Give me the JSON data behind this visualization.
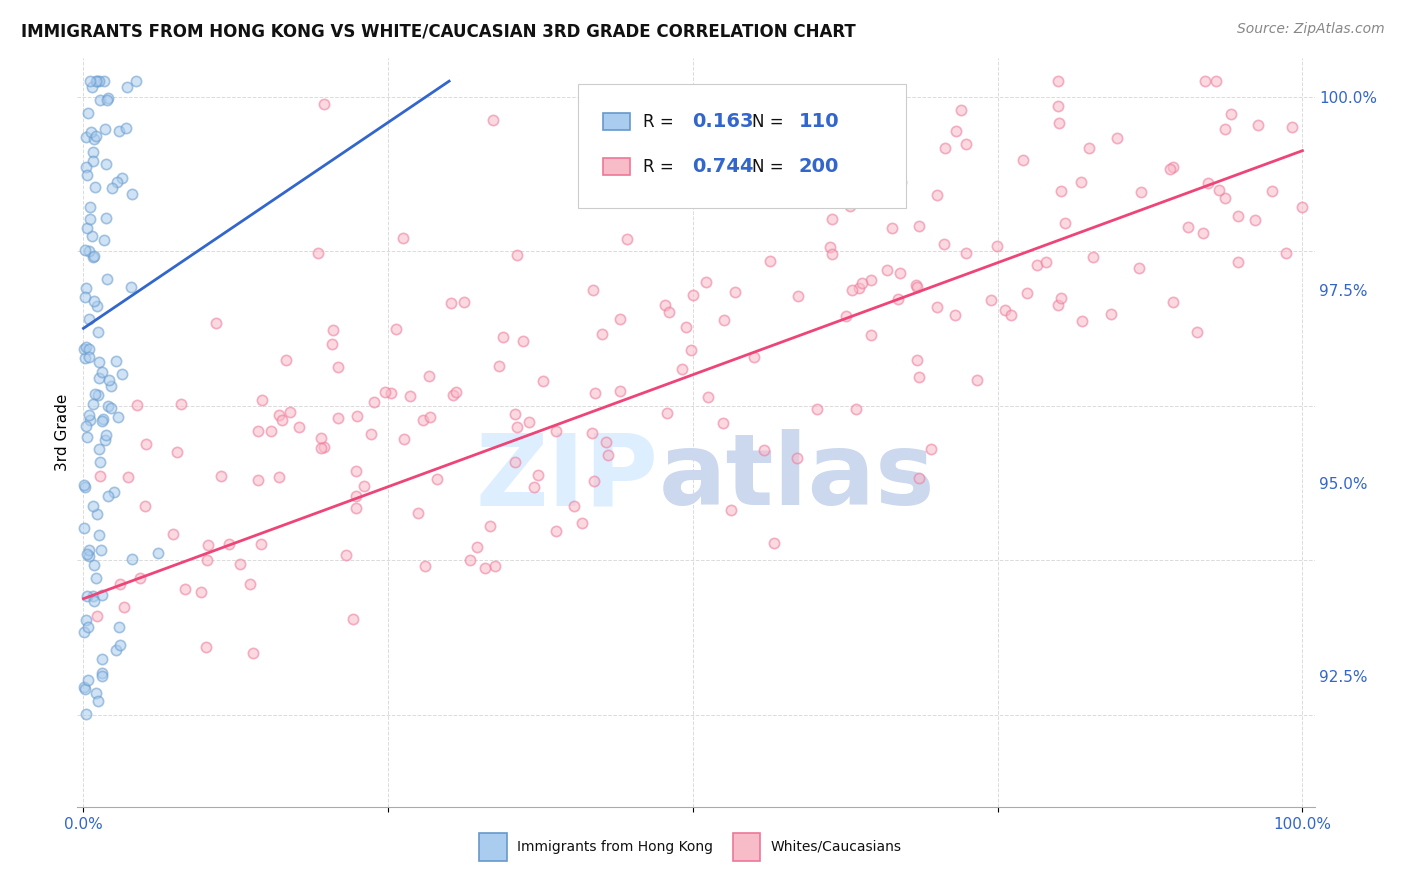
{
  "title": "IMMIGRANTS FROM HONG KONG VS WHITE/CAUCASIAN 3RD GRADE CORRELATION CHART",
  "source": "Source: ZipAtlas.com",
  "ylabel": "3rd Grade",
  "ytick_labels": [
    "100.0%",
    "97.5%",
    "95.0%",
    "92.5%"
  ],
  "ytick_values": [
    1.0,
    0.975,
    0.95,
    0.925
  ],
  "ylim": [
    0.908,
    1.005
  ],
  "xlim": [
    -0.005,
    1.01
  ],
  "blue_R": "0.163",
  "blue_N": "110",
  "pink_R": "0.744",
  "pink_N": "200",
  "blue_line_x0": 0.0,
  "blue_line_y0": 0.97,
  "blue_line_x1": 0.3,
  "blue_line_y1": 1.002,
  "pink_line_x0": 0.0,
  "pink_line_y0": 0.935,
  "pink_line_x1": 1.0,
  "pink_line_y1": 0.993,
  "blue_dot_color": "#aaccee",
  "blue_edge_color": "#6699cc",
  "pink_dot_color": "#f8bbc8",
  "pink_edge_color": "#ee7799",
  "blue_line_color": "#3366cc",
  "pink_line_color": "#ee4477",
  "axis_tick_color": "#3366cc",
  "grid_color": "#cccccc",
  "title_color": "#111111",
  "source_color": "#888888",
  "watermark_zip_color": "#ddeeff",
  "watermark_atlas_color": "#ccd8ee",
  "legend_border_color": "#cccccc",
  "legend_text_color": "#111111",
  "legend_value_color": "#3366cc",
  "bottom_legend_text_color": "#111111",
  "title_fontsize": 12,
  "source_fontsize": 10,
  "axis_fontsize": 11,
  "legend_fontsize": 12,
  "legend_value_fontsize": 14,
  "watermark_fontsize": 72,
  "dot_size": 55,
  "dot_alpha": 0.55,
  "dot_linewidth": 1.2,
  "line_width": 2.0
}
